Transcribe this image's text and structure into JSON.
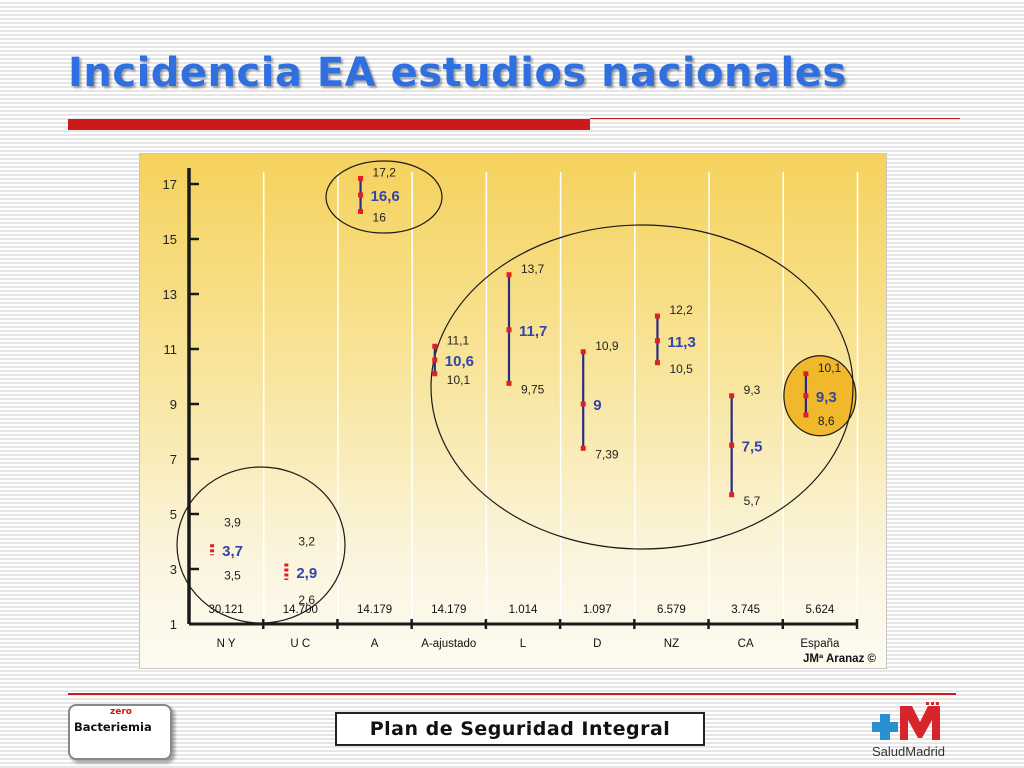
{
  "slide": {
    "title": "Incidencia EA estudios nacionales",
    "footer_center": "Plan de Seguridad Integral",
    "logo_left_text": "Bacteriemia",
    "logo_left_sub": "zero",
    "logo_right_text": "SaludMadrid",
    "accent_color": "#cc1a1a",
    "title_color": "#2f6fe0"
  },
  "chart_data": {
    "type": "range",
    "categories": [
      "N Y",
      "U C",
      "A",
      "A-ajustado",
      "L",
      "D",
      "NZ",
      "CA",
      "España"
    ],
    "sample_sizes": [
      "30.121",
      "14.700",
      "14.179",
      "14.179",
      "1.014",
      "1.097",
      "6.579",
      "3.745",
      "5.624"
    ],
    "series": [
      {
        "values": [
          3.7,
          2.9,
          16.6,
          10.6,
          11.7,
          9,
          11.3,
          7.5,
          9.3
        ]
      }
    ],
    "low": [
      3.5,
      2.6,
      16,
      10.1,
      9.75,
      7.39,
      10.5,
      5.7,
      8.6
    ],
    "high": [
      3.9,
      3.2,
      17.2,
      11.1,
      13.7,
      10.9,
      12.2,
      9.3,
      10.1
    ],
    "value_labels": [
      "3,7",
      "2,9",
      "16,6",
      "10,6",
      "11,7",
      "9",
      "11,3",
      "7,5",
      "9,3"
    ],
    "low_labels": [
      "3,5",
      "2,6",
      "16",
      "10,1",
      "9,75",
      "7,39",
      "10,5",
      "5,7",
      "8,6"
    ],
    "high_labels": [
      "3,9",
      "3,2",
      "17,2",
      "11,1",
      "13,7",
      "10,9",
      "12,2",
      "9,3",
      "10,1"
    ],
    "yticks": [
      1,
      3,
      5,
      7,
      9,
      11,
      13,
      15,
      17
    ],
    "ylim": [
      1,
      17
    ],
    "grid": "vertical",
    "credit": "JMª Aranaz ©",
    "colors": {
      "range_line": "#2a2a80",
      "endpoint": "#e02020",
      "value_label": "#3344aa",
      "highlight": "#f0b82a"
    }
  }
}
